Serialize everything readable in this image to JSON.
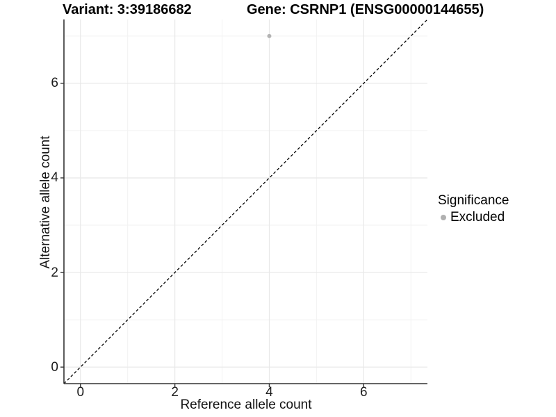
{
  "chart_data": {
    "type": "scatter",
    "title_left": "Variant: 3:39186682",
    "title_right": "Gene: CSRNP1 (ENSG00000144655)",
    "xlabel": "Reference allele count",
    "ylabel": "Alternative allele count",
    "xlim": [
      -0.35,
      7.35
    ],
    "ylim": [
      -0.35,
      7.35
    ],
    "xticks": [
      0,
      2,
      4,
      6
    ],
    "yticks": [
      0,
      2,
      4,
      6
    ],
    "xticks_minor": [
      1,
      3,
      5,
      7
    ],
    "yticks_minor": [
      1,
      3,
      5,
      7
    ],
    "grid": true,
    "points": [
      {
        "x": 4,
        "y": 7,
        "series": "Excluded"
      }
    ],
    "reference_line": {
      "type": "identity y=x",
      "linetype": "dashed",
      "color": "#000000"
    },
    "legend": {
      "title": "Significance",
      "position": "right",
      "entries": [
        {
          "label": "Excluded",
          "color": "#b0b0b0"
        }
      ]
    }
  },
  "colors": {
    "background": "#ffffff",
    "grid_major": "#e8e8e8",
    "grid_minor": "#f2f2f2",
    "axis": "#333333",
    "point": "#b3b3b3"
  }
}
